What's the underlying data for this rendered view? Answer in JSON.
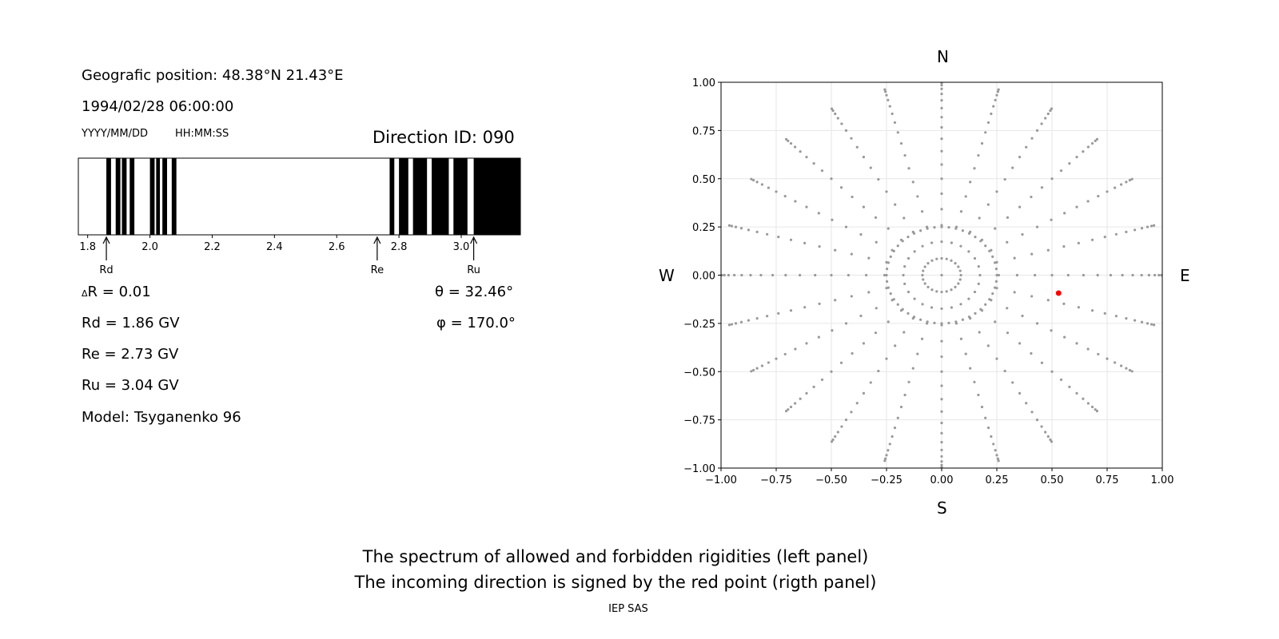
{
  "header": {
    "position": "Geografic position: 48.38°N 21.43°E",
    "datetime": "1994/02/28 06:00:00",
    "date_format": "YYYY/MM/DD",
    "time_format": "HH:MM:SS",
    "direction_id": "Direction ID: 090"
  },
  "stats": {
    "dr": "R = 0.01",
    "dr_symbol": "Δ",
    "rd": "Rd = 1.86 GV",
    "re": "Re = 2.73 GV",
    "ru": "Ru = 3.04 GV",
    "model": "Model: Tsyganenko 96",
    "theta": "θ = 32.46°",
    "phi": "φ = 170.0°"
  },
  "caption": {
    "line1": "The spectrum of allowed and forbidden rigidities (left panel)",
    "line2": "The incoming direction is signed by the red point (rigth panel)",
    "credit": "IEP SAS"
  },
  "compass": {
    "n": "N",
    "s": "S",
    "w": "W",
    "e": "E"
  },
  "colors": {
    "grid_points": "#999999",
    "direction_point": "#ff0000",
    "forbidden": "#000000"
  },
  "chart_data": [
    {
      "type": "bar",
      "description_text_source": "spectrum panel",
      "xlim": [
        1.77,
        3.19
      ],
      "ticks": [
        1.8,
        2.0,
        2.2,
        2.4,
        2.6,
        2.8,
        3.0
      ],
      "tick_labels": [
        "1.8",
        "2.0",
        "2.2",
        "2.4",
        "2.6",
        "2.8",
        "3.0"
      ],
      "forbidden_bands": [
        [
          1.86,
          1.875
        ],
        [
          1.89,
          1.905
        ],
        [
          1.91,
          1.925
        ],
        [
          1.935,
          1.95
        ],
        [
          2.0,
          2.015
        ],
        [
          2.02,
          2.032
        ],
        [
          2.04,
          2.055
        ],
        [
          2.07,
          2.085
        ],
        [
          2.77,
          2.785
        ],
        [
          2.8,
          2.83
        ],
        [
          2.845,
          2.89
        ],
        [
          2.905,
          2.96
        ],
        [
          2.975,
          3.02
        ],
        [
          3.04,
          3.19
        ]
      ],
      "markers": [
        {
          "label": "Rd",
          "value": 1.86
        },
        {
          "label": "Re",
          "value": 2.73
        },
        {
          "label": "Ru",
          "value": 3.04
        }
      ]
    },
    {
      "type": "scatter",
      "description_text_source": "direction panel",
      "xlim": [
        -1.0,
        1.0
      ],
      "ylim": [
        -1.0,
        1.0
      ],
      "xticks": [
        -1.0,
        -0.75,
        -0.5,
        -0.25,
        0.0,
        0.25,
        0.5,
        0.75,
        1.0
      ],
      "yticks": [
        -1.0,
        -0.75,
        -0.5,
        -0.25,
        0.0,
        0.25,
        0.5,
        0.75,
        1.0
      ],
      "xtick_labels": [
        "−1.00",
        "−0.75",
        "−0.50",
        "−0.25",
        "0.00",
        "0.25",
        "0.50",
        "0.75",
        "1.00"
      ],
      "ytick_labels": [
        "−1.00",
        "−0.75",
        "−0.50",
        "−0.25",
        "0.00",
        "0.25",
        "0.50",
        "0.75",
        "1.00"
      ],
      "grid": true,
      "grid_points": {
        "azimuth_step_deg": 15,
        "zenith_step_deg": 5,
        "zenith_max_deg": 85,
        "note": "points at x = sin(zenith)·sin(az), y = sin(zenith)·cos(az), plus origin"
      },
      "highlight": {
        "x": 0.53,
        "y": -0.093
      }
    }
  ]
}
